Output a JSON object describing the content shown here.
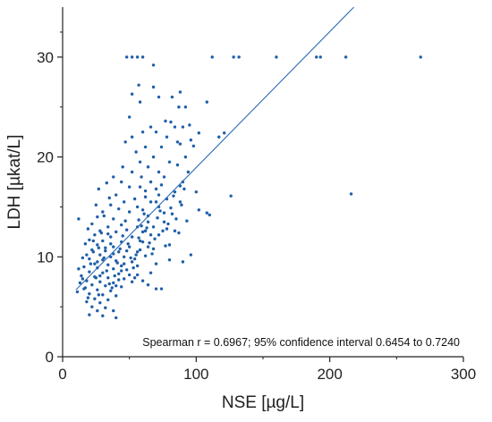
{
  "chart_data": {
    "type": "scatter",
    "xlabel": "NSE [µg/L]",
    "ylabel": "LDH [µkat/L]",
    "xlim": [
      0,
      300
    ],
    "ylim": [
      0,
      35
    ],
    "xticks": [
      "0",
      "100",
      "200",
      "300"
    ],
    "yticks": [
      "0",
      "10",
      "20",
      "30"
    ],
    "annotation": "Spearman r = 0.6967; 95% confidence interval 0.6454 to 0.7240",
    "point_color": "#1f5fa8",
    "line_color": "#2e6db5",
    "grid": false,
    "regression_line": {
      "x": [
        10,
        218
      ],
      "y": [
        6.7,
        35.0
      ]
    },
    "points": [
      [
        48,
        30
      ],
      [
        52,
        30
      ],
      [
        56,
        30
      ],
      [
        60,
        30
      ],
      [
        112,
        30
      ],
      [
        128,
        30
      ],
      [
        132,
        30
      ],
      [
        160,
        30
      ],
      [
        190,
        30
      ],
      [
        193,
        30
      ],
      [
        212,
        30
      ],
      [
        268,
        30
      ],
      [
        68,
        29.2
      ],
      [
        57,
        27.2
      ],
      [
        68,
        27
      ],
      [
        88,
        26.5
      ],
      [
        72,
        26
      ],
      [
        82,
        26
      ],
      [
        58,
        25.5
      ],
      [
        87,
        25
      ],
      [
        92,
        25
      ],
      [
        108,
        25.5
      ],
      [
        50,
        24
      ],
      [
        77,
        23.6
      ],
      [
        81,
        23.5
      ],
      [
        66,
        23
      ],
      [
        84,
        23
      ],
      [
        90,
        23
      ],
      [
        95,
        23.2
      ],
      [
        60,
        22.5
      ],
      [
        70,
        22.5
      ],
      [
        102,
        22.4
      ],
      [
        121,
        22.4
      ],
      [
        52,
        22
      ],
      [
        78,
        22
      ],
      [
        117,
        22
      ],
      [
        86,
        21.5
      ],
      [
        96,
        21.7
      ],
      [
        62,
        21
      ],
      [
        74,
        21
      ],
      [
        88,
        21.3
      ],
      [
        55,
        20.5
      ],
      [
        68,
        20
      ],
      [
        92,
        20
      ],
      [
        58,
        19.5
      ],
      [
        80,
        19.5
      ],
      [
        45,
        19
      ],
      [
        64,
        19
      ],
      [
        86,
        19.2
      ],
      [
        52,
        18.5
      ],
      [
        72,
        18.5
      ],
      [
        38,
        18
      ],
      [
        59,
        18
      ],
      [
        76,
        18
      ],
      [
        44,
        17.5
      ],
      [
        66,
        17.5
      ],
      [
        90,
        17.5
      ],
      [
        50,
        17
      ],
      [
        58,
        17
      ],
      [
        70,
        16.8
      ],
      [
        84,
        16.5
      ],
      [
        126,
        16.1
      ],
      [
        216,
        16.3
      ],
      [
        40,
        16.2
      ],
      [
        62,
        16
      ],
      [
        54,
        15.8
      ],
      [
        78,
        15.8
      ],
      [
        46,
        15.5
      ],
      [
        66,
        15.5
      ],
      [
        88,
        15.5
      ],
      [
        36,
        15.2
      ],
      [
        56,
        15
      ],
      [
        72,
        15
      ],
      [
        42,
        14.8
      ],
      [
        60,
        14.7
      ],
      [
        102,
        14.7
      ],
      [
        108,
        14.4
      ],
      [
        30,
        14.5
      ],
      [
        50,
        14.5
      ],
      [
        82,
        14.3
      ],
      [
        12,
        13.8
      ],
      [
        26,
        14
      ],
      [
        38,
        13.8
      ],
      [
        64,
        13.5
      ],
      [
        76,
        13.5
      ],
      [
        44,
        13.2
      ],
      [
        34,
        13
      ],
      [
        56,
        13
      ],
      [
        68,
        13
      ],
      [
        28,
        12.6
      ],
      [
        40,
        12.5
      ],
      [
        48,
        12.7
      ],
      [
        60,
        12.5
      ],
      [
        24,
        12.2
      ],
      [
        36,
        12
      ],
      [
        52,
        12
      ],
      [
        72,
        12.2
      ],
      [
        20,
        11.7
      ],
      [
        30,
        11.6
      ],
      [
        44,
        11.5
      ],
      [
        58,
        11.6
      ],
      [
        80,
        11.2
      ],
      [
        26,
        11.2
      ],
      [
        38,
        11
      ],
      [
        50,
        11
      ],
      [
        64,
        11
      ],
      [
        22,
        10.7
      ],
      [
        32,
        10.6
      ],
      [
        42,
        10.5
      ],
      [
        56,
        10.5
      ],
      [
        18,
        10.2
      ],
      [
        28,
        10.2
      ],
      [
        36,
        10
      ],
      [
        46,
        10
      ],
      [
        62,
        10.1
      ],
      [
        20,
        9.8
      ],
      [
        30,
        9.7
      ],
      [
        40,
        9.6
      ],
      [
        52,
        9.5
      ],
      [
        24,
        9.3
      ],
      [
        34,
        9.2
      ],
      [
        44,
        9.1
      ],
      [
        16,
        9
      ],
      [
        26,
        8.9
      ],
      [
        38,
        8.8
      ],
      [
        48,
        8.7
      ],
      [
        20,
        8.5
      ],
      [
        30,
        8.4
      ],
      [
        42,
        8.3
      ],
      [
        56,
        8.2
      ],
      [
        14,
        8.1
      ],
      [
        24,
        8
      ],
      [
        34,
        7.9
      ],
      [
        46,
        7.8
      ],
      [
        18,
        7.6
      ],
      [
        28,
        7.5
      ],
      [
        38,
        7.4
      ],
      [
        22,
        7.2
      ],
      [
        32,
        7.1
      ],
      [
        44,
        7
      ],
      [
        16,
        6.8
      ],
      [
        26,
        6.7
      ],
      [
        36,
        6.6
      ],
      [
        20,
        6.3
      ],
      [
        30,
        6.2
      ],
      [
        40,
        6.1
      ],
      [
        24,
        5.8
      ],
      [
        34,
        5.7
      ],
      [
        18,
        5.5
      ],
      [
        28,
        5.4
      ],
      [
        22,
        5
      ],
      [
        32,
        4.9
      ],
      [
        26,
        4.6
      ],
      [
        38,
        4.6
      ],
      [
        20,
        4.2
      ],
      [
        30,
        4.1
      ],
      [
        40,
        3.9
      ],
      [
        64,
        7.2
      ],
      [
        70,
        6.8
      ],
      [
        74,
        6.8
      ],
      [
        90,
        9.5
      ],
      [
        96,
        10.2
      ],
      [
        84,
        12.6
      ],
      [
        110,
        14.2
      ],
      [
        52,
        26.3
      ],
      [
        47,
        21.5
      ],
      [
        98,
        21.1
      ],
      [
        88,
        17.1
      ],
      [
        62,
        16.6
      ],
      [
        100,
        16.5
      ],
      [
        94,
        18.5
      ],
      [
        57,
        13.7
      ],
      [
        80,
        9.7
      ],
      [
        70,
        9.3
      ],
      [
        66,
        8.4
      ],
      [
        60,
        7.6
      ],
      [
        54,
        7.9
      ],
      [
        17,
        11.3
      ],
      [
        15,
        9.9
      ],
      [
        13,
        7.4
      ],
      [
        12,
        8.8
      ],
      [
        11,
        6.5
      ],
      [
        19,
        12.8
      ],
      [
        22,
        13.3
      ],
      [
        25,
        15.2
      ],
      [
        27,
        16.8
      ],
      [
        33,
        17.4
      ],
      [
        35,
        15.9
      ],
      [
        31,
        14.1
      ],
      [
        29,
        12.4
      ],
      [
        23,
        10.5
      ],
      [
        21,
        9.3
      ],
      [
        25,
        7.9
      ],
      [
        27,
        6.2
      ],
      [
        19,
        5.9
      ],
      [
        17,
        6.9
      ],
      [
        15,
        7.8
      ],
      [
        23,
        11.6
      ],
      [
        27,
        10.9
      ],
      [
        31,
        9.9
      ],
      [
        33,
        8.6
      ],
      [
        35,
        7.3
      ],
      [
        37,
        6.9
      ],
      [
        39,
        8.1
      ],
      [
        41,
        9.4
      ],
      [
        43,
        10.8
      ],
      [
        45,
        12.1
      ],
      [
        47,
        13.6
      ],
      [
        49,
        11.3
      ],
      [
        51,
        9.9
      ],
      [
        53,
        8.9
      ],
      [
        55,
        10.2
      ],
      [
        57,
        11.9
      ],
      [
        59,
        13.1
      ],
      [
        61,
        14.3
      ],
      [
        63,
        12.9
      ],
      [
        65,
        11.4
      ],
      [
        67,
        10.3
      ],
      [
        69,
        11.8
      ],
      [
        71,
        13.9
      ],
      [
        73,
        14.6
      ],
      [
        75,
        12.6
      ],
      [
        77,
        11.1
      ],
      [
        79,
        13.3
      ],
      [
        81,
        14.9
      ],
      [
        83,
        16.1
      ],
      [
        85,
        13.8
      ],
      [
        87,
        12.4
      ],
      [
        89,
        15.2
      ],
      [
        91,
        16.8
      ],
      [
        93,
        13.6
      ],
      [
        26,
        9.5
      ],
      [
        28,
        8.1
      ],
      [
        32,
        10.9
      ],
      [
        34,
        12.3
      ],
      [
        36,
        11.3
      ],
      [
        38,
        10.3
      ],
      [
        40,
        7.1
      ],
      [
        42,
        7.7
      ],
      [
        44,
        8.6
      ],
      [
        46,
        9.3
      ],
      [
        48,
        10.6
      ],
      [
        50,
        8.2
      ],
      [
        52,
        7.5
      ],
      [
        54,
        9.8
      ],
      [
        56,
        9.1
      ],
      [
        58,
        10.7
      ],
      [
        60,
        11.5
      ],
      [
        62,
        12.6
      ],
      [
        64,
        14.1
      ],
      [
        66,
        12.2
      ],
      [
        68,
        10.8
      ],
      [
        70,
        15.5
      ],
      [
        72,
        16.2
      ],
      [
        74,
        17.2
      ],
      [
        76,
        14.4
      ],
      [
        78,
        12.8
      ]
    ]
  }
}
